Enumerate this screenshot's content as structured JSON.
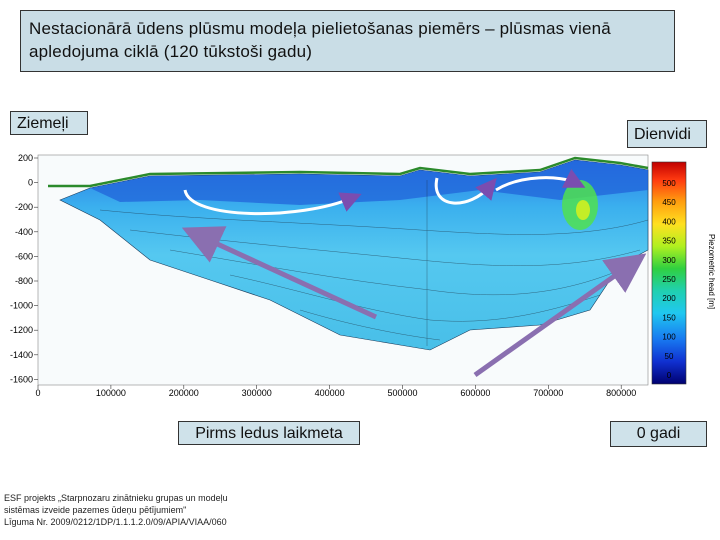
{
  "title": "Nestacionārā ūdens plūsmu modeļa pielietošanas piemērs – plūsmas vienā apledojuma ciklā (120 tūkstoši gadu)",
  "labels": {
    "north": "Ziemeļi",
    "south": "Dienvidi",
    "before_ice_age": "Pirms ledus laikmeta",
    "zero_years": "0 gadi"
  },
  "chart": {
    "y_ticks": [
      "200",
      "0",
      "-200",
      "-400",
      "-600",
      "-800",
      "-1000",
      "-1200",
      "-1400",
      "-1600"
    ],
    "x_ticks": [
      "0",
      "100000",
      "200000",
      "300000",
      "400000",
      "500000",
      "600000",
      "700000",
      "800000"
    ],
    "colorbar_ticks": [
      "500",
      "450",
      "400",
      "350",
      "300",
      "250",
      "200",
      "150",
      "100",
      "50",
      "0"
    ],
    "colorbar_title": "Piezometric head [m]",
    "colors": {
      "surface_line": "#2b8a2b",
      "arrow": "#8a6fb0",
      "colorbar": [
        "#ff2020",
        "#ff7a10",
        "#ffd020",
        "#c8f020",
        "#40d040",
        "#20c8a0",
        "#20c0e0",
        "#2090f0",
        "#2050e0",
        "#1020b0",
        "#000080"
      ]
    }
  },
  "footer": [
    "ESF projekts „Starpnozaru zinātnieku grupas un modeļu",
    "sistēmas izveide pazemes ūdeņu pētījumiem\"",
    "Līguma Nr. 2009/0212/1DP/1.1.1.2.0/09/APIA/VIAA/060"
  ]
}
